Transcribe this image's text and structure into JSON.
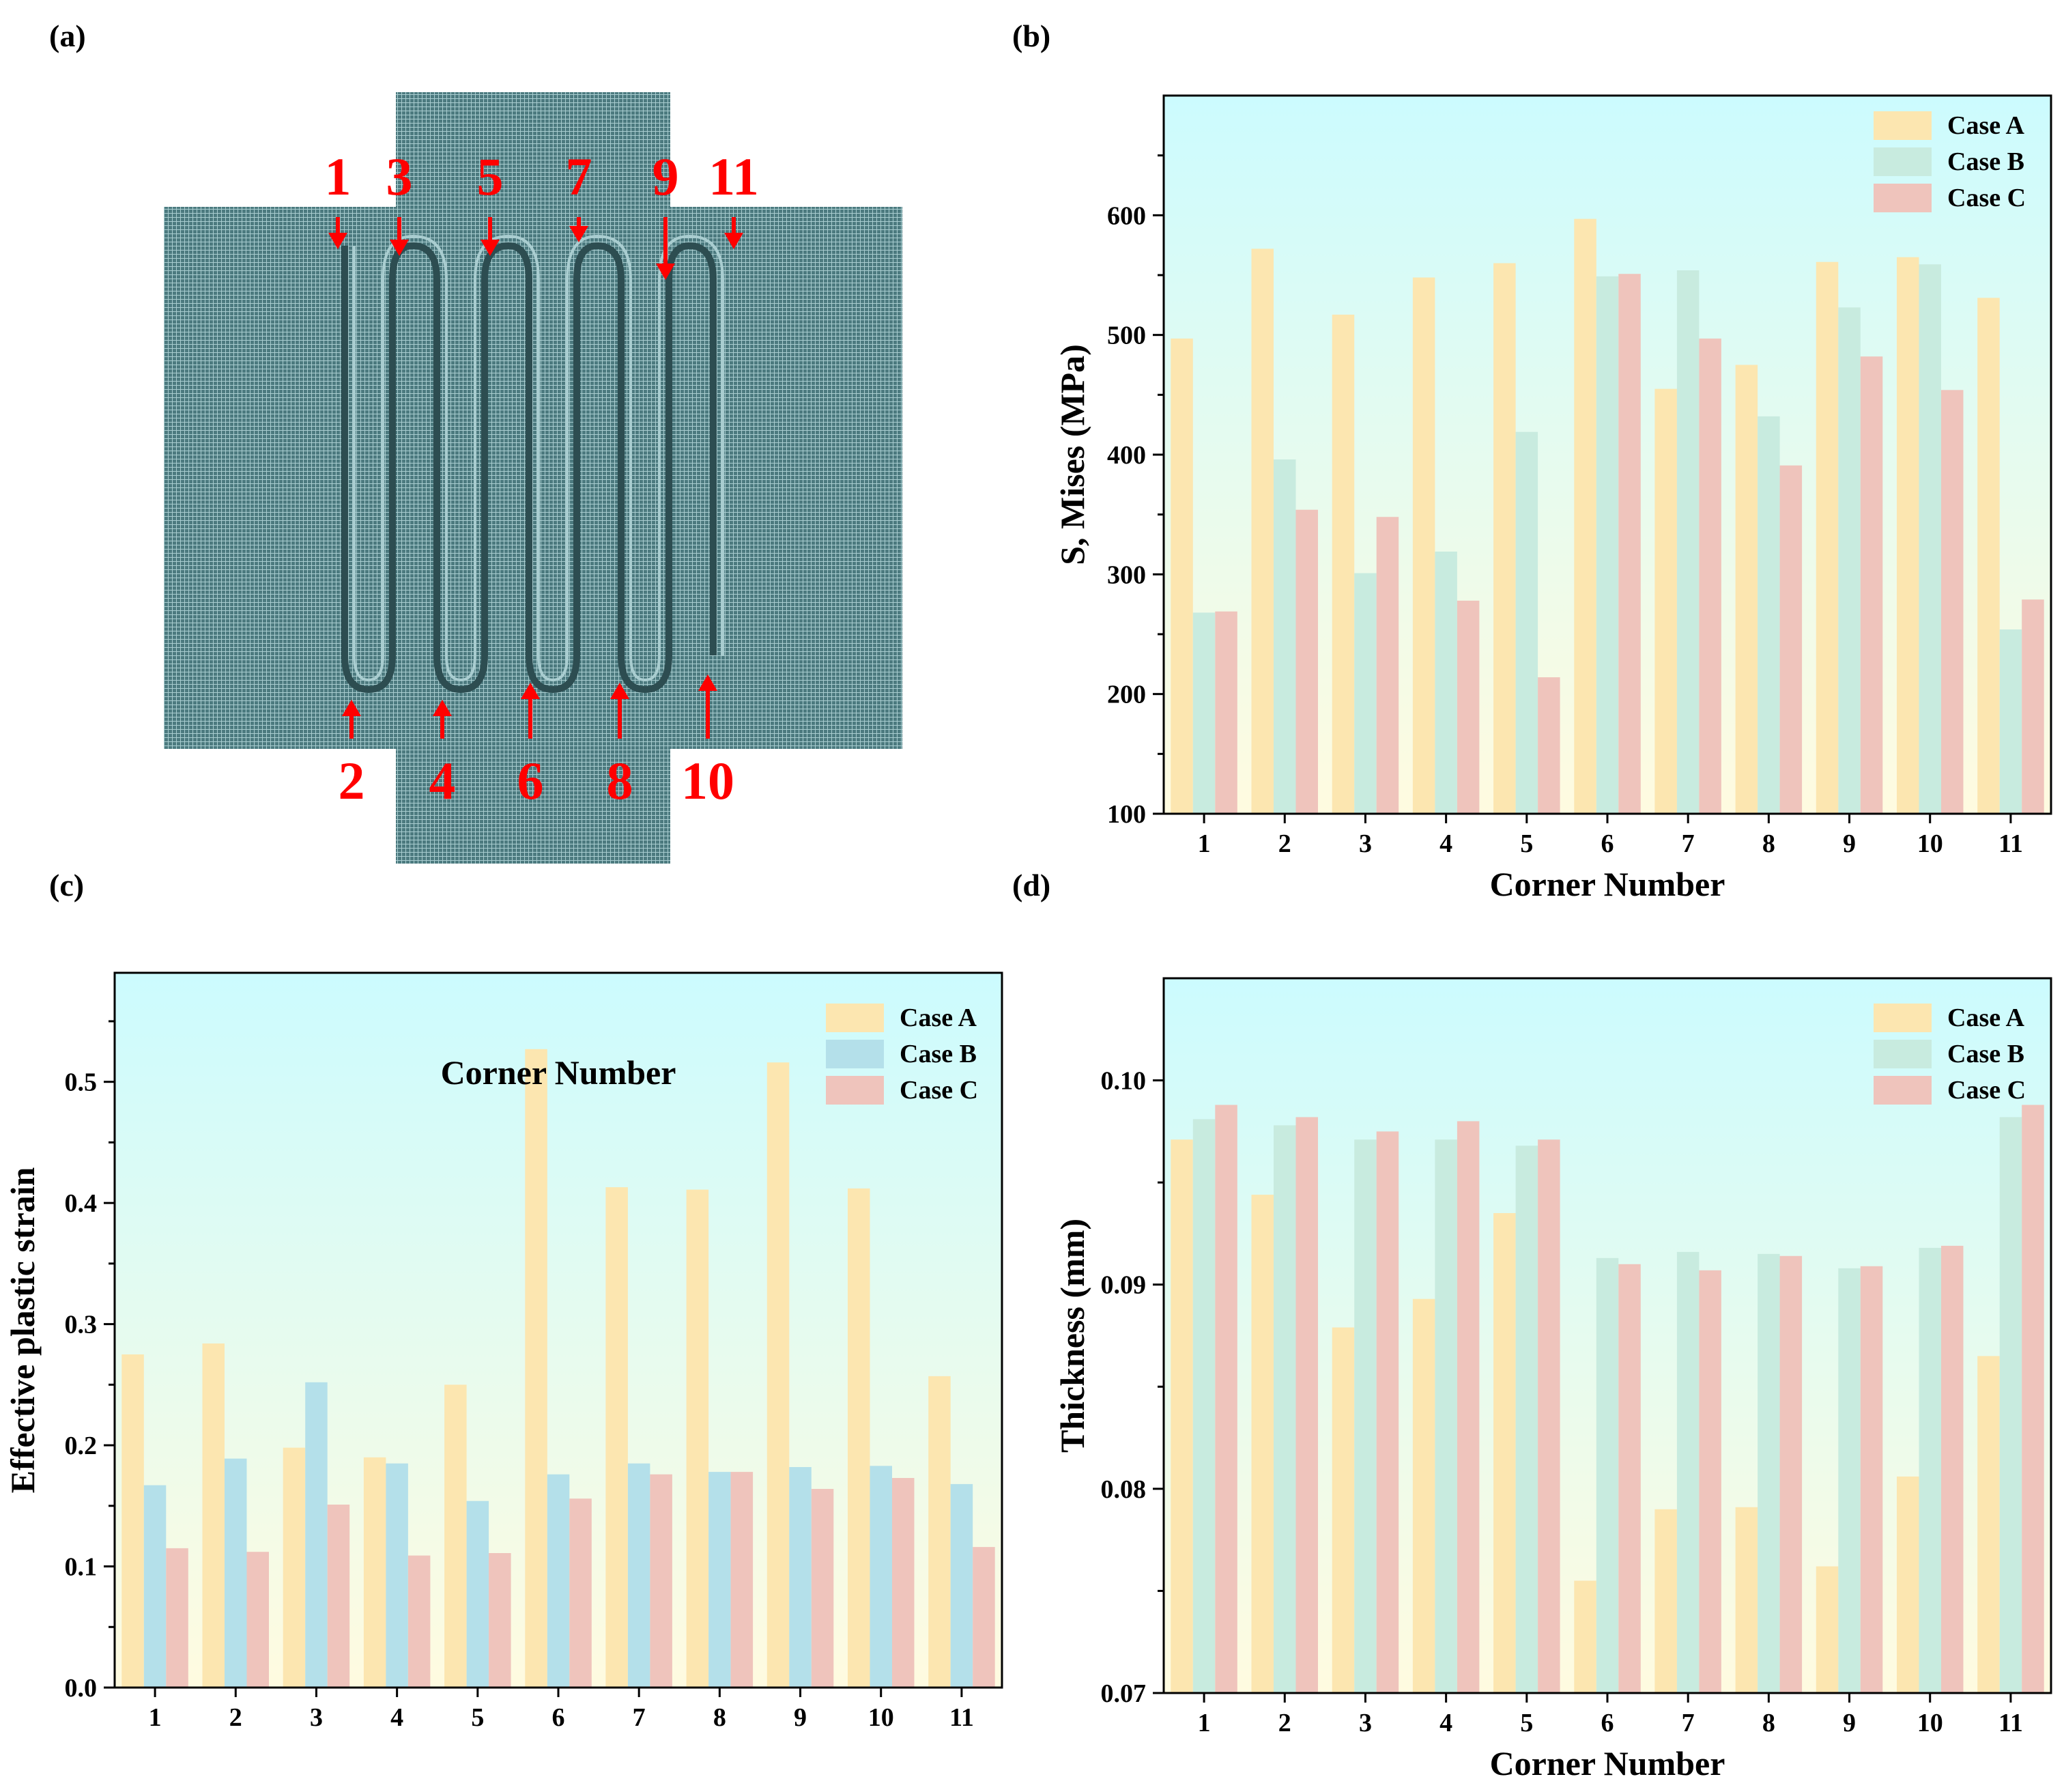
{
  "panels": {
    "a": {
      "label": "(a)",
      "top_numbers": [
        "1",
        "3",
        "5",
        "7",
        "9",
        "11"
      ],
      "bottom_numbers": [
        "2",
        "4",
        "6",
        "8",
        "10"
      ]
    }
  },
  "colors": {
    "case_a": "#fce6b0",
    "case_b_teal": "#c8ebdf",
    "case_b_blue": "#b4e0ea",
    "case_c": "#efc4bc",
    "plot_bg_top": "#ccfbfe",
    "plot_bg_bottom": "#fffbe0",
    "arrow_red": "#ff0000",
    "mesh": "#4c7a7f"
  },
  "chart_data": [
    {
      "panel": "b",
      "label": "(b)",
      "type": "bar",
      "categories": [
        "1",
        "2",
        "3",
        "4",
        "5",
        "6",
        "7",
        "8",
        "9",
        "10",
        "11"
      ],
      "series": [
        {
          "name": "Case A",
          "values": [
            497,
            572,
            517,
            548,
            560,
            597,
            455,
            475,
            561,
            565,
            531
          ]
        },
        {
          "name": "Case B",
          "values": [
            268,
            396,
            301,
            319,
            419,
            549,
            554,
            432,
            523,
            559,
            254
          ]
        },
        {
          "name": "Case C",
          "values": [
            269,
            354,
            348,
            278,
            214,
            551,
            497,
            391,
            482,
            454,
            279
          ]
        }
      ],
      "xlabel": "Corner Number",
      "ylabel": "S, Mises (MPa)",
      "ylim": [
        100,
        700
      ],
      "yticks": [
        "100",
        "200",
        "300",
        "400",
        "500",
        "600"
      ],
      "legend": "top-right"
    },
    {
      "panel": "c",
      "label": "(c)",
      "type": "bar",
      "categories": [
        "1",
        "2",
        "3",
        "4",
        "5",
        "6",
        "7",
        "8",
        "9",
        "10",
        "11"
      ],
      "series": [
        {
          "name": "Case A",
          "values": [
            0.275,
            0.284,
            0.198,
            0.19,
            0.25,
            0.527,
            0.413,
            0.411,
            0.516,
            0.412,
            0.257
          ]
        },
        {
          "name": "Case B",
          "values": [
            0.167,
            0.189,
            0.252,
            0.185,
            0.154,
            0.176,
            0.185,
            0.178,
            0.182,
            0.183,
            0.168
          ]
        },
        {
          "name": "Case C",
          "values": [
            0.115,
            0.112,
            0.151,
            0.109,
            0.111,
            0.156,
            0.176,
            0.178,
            0.164,
            0.173,
            0.116
          ]
        }
      ],
      "xlabel": "Corner Number",
      "ylabel": "Effective plastic strain",
      "ylim": [
        0,
        0.59
      ],
      "yticks": [
        "0.0",
        "0.1",
        "0.2",
        "0.3",
        "0.4",
        "0.5"
      ],
      "legend": "top-right"
    },
    {
      "panel": "d",
      "label": "(d)",
      "type": "bar",
      "categories": [
        "1",
        "2",
        "3",
        "4",
        "5",
        "6",
        "7",
        "8",
        "9",
        "10",
        "11"
      ],
      "series": [
        {
          "name": "Case A",
          "values": [
            0.0971,
            0.0944,
            0.0879,
            0.0893,
            0.0935,
            0.0755,
            0.079,
            0.0791,
            0.0762,
            0.0806,
            0.0865
          ]
        },
        {
          "name": "Case B",
          "values": [
            0.0981,
            0.0978,
            0.0971,
            0.0971,
            0.0968,
            0.0913,
            0.0916,
            0.0915,
            0.0908,
            0.0918,
            0.0982
          ]
        },
        {
          "name": "Case C",
          "values": [
            0.0988,
            0.0982,
            0.0975,
            0.098,
            0.0971,
            0.091,
            0.0907,
            0.0914,
            0.0909,
            0.0919,
            0.0988
          ]
        }
      ],
      "xlabel": "Corner Number",
      "ylabel": "Thickness (mm)",
      "ylim": [
        0.07,
        0.105
      ],
      "yticks": [
        "0.07",
        "0.08",
        "0.09",
        "0.10"
      ],
      "legend": "top-right"
    }
  ]
}
